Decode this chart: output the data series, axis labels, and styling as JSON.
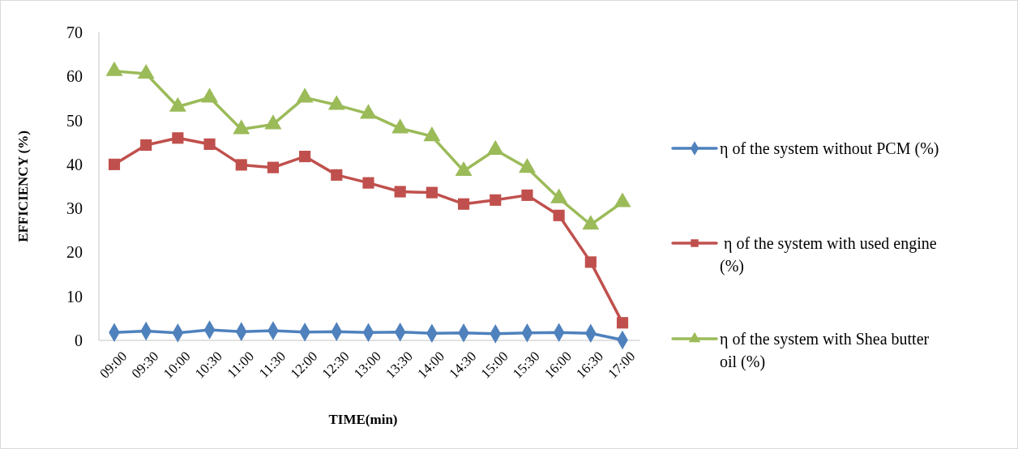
{
  "chart_data": {
    "type": "line",
    "xlabel": "TIME(min)",
    "ylabel": "EFFICIENCY (%)",
    "categories": [
      "09:00",
      "09:30",
      "10:00",
      "10:30",
      "11:00",
      "11:30",
      "12:00",
      "12:30",
      "13:00",
      "13:30",
      "14:00",
      "14:30",
      "15:00",
      "15:30",
      "16:00",
      "16:30",
      "17:00"
    ],
    "ylim": [
      0,
      70
    ],
    "yticks": [
      0,
      10,
      20,
      30,
      40,
      50,
      60,
      70
    ],
    "grid": false,
    "legend": "right",
    "series": [
      {
        "name": "η of the system without PCM (%)",
        "color": "#4f81bd",
        "marker": "diamond",
        "values": [
          1.8,
          2.1,
          1.7,
          2.4,
          2.0,
          2.2,
          1.9,
          2.0,
          1.8,
          1.9,
          1.6,
          1.7,
          1.5,
          1.7,
          1.8,
          1.6,
          0.1
        ]
      },
      {
        "name": " η of the system with used engine (%)",
        "color": "#c0504d",
        "marker": "square",
        "values": [
          40,
          44.4,
          46,
          44.6,
          39.9,
          39.3,
          41.8,
          37.6,
          35.8,
          33.8,
          33.6,
          31,
          31.9,
          33,
          28.4,
          17.8,
          4
        ]
      },
      {
        "name": "η of the system with Shea butter oil (%)",
        "color": "#9bbb59",
        "marker": "triangle",
        "values": [
          61.2,
          60.6,
          53.1,
          55.2,
          48,
          49.1,
          55.2,
          53.5,
          51.5,
          48.2,
          46.4,
          38.5,
          43.3,
          39.2,
          32.3,
          26.3,
          31.4
        ]
      }
    ]
  }
}
